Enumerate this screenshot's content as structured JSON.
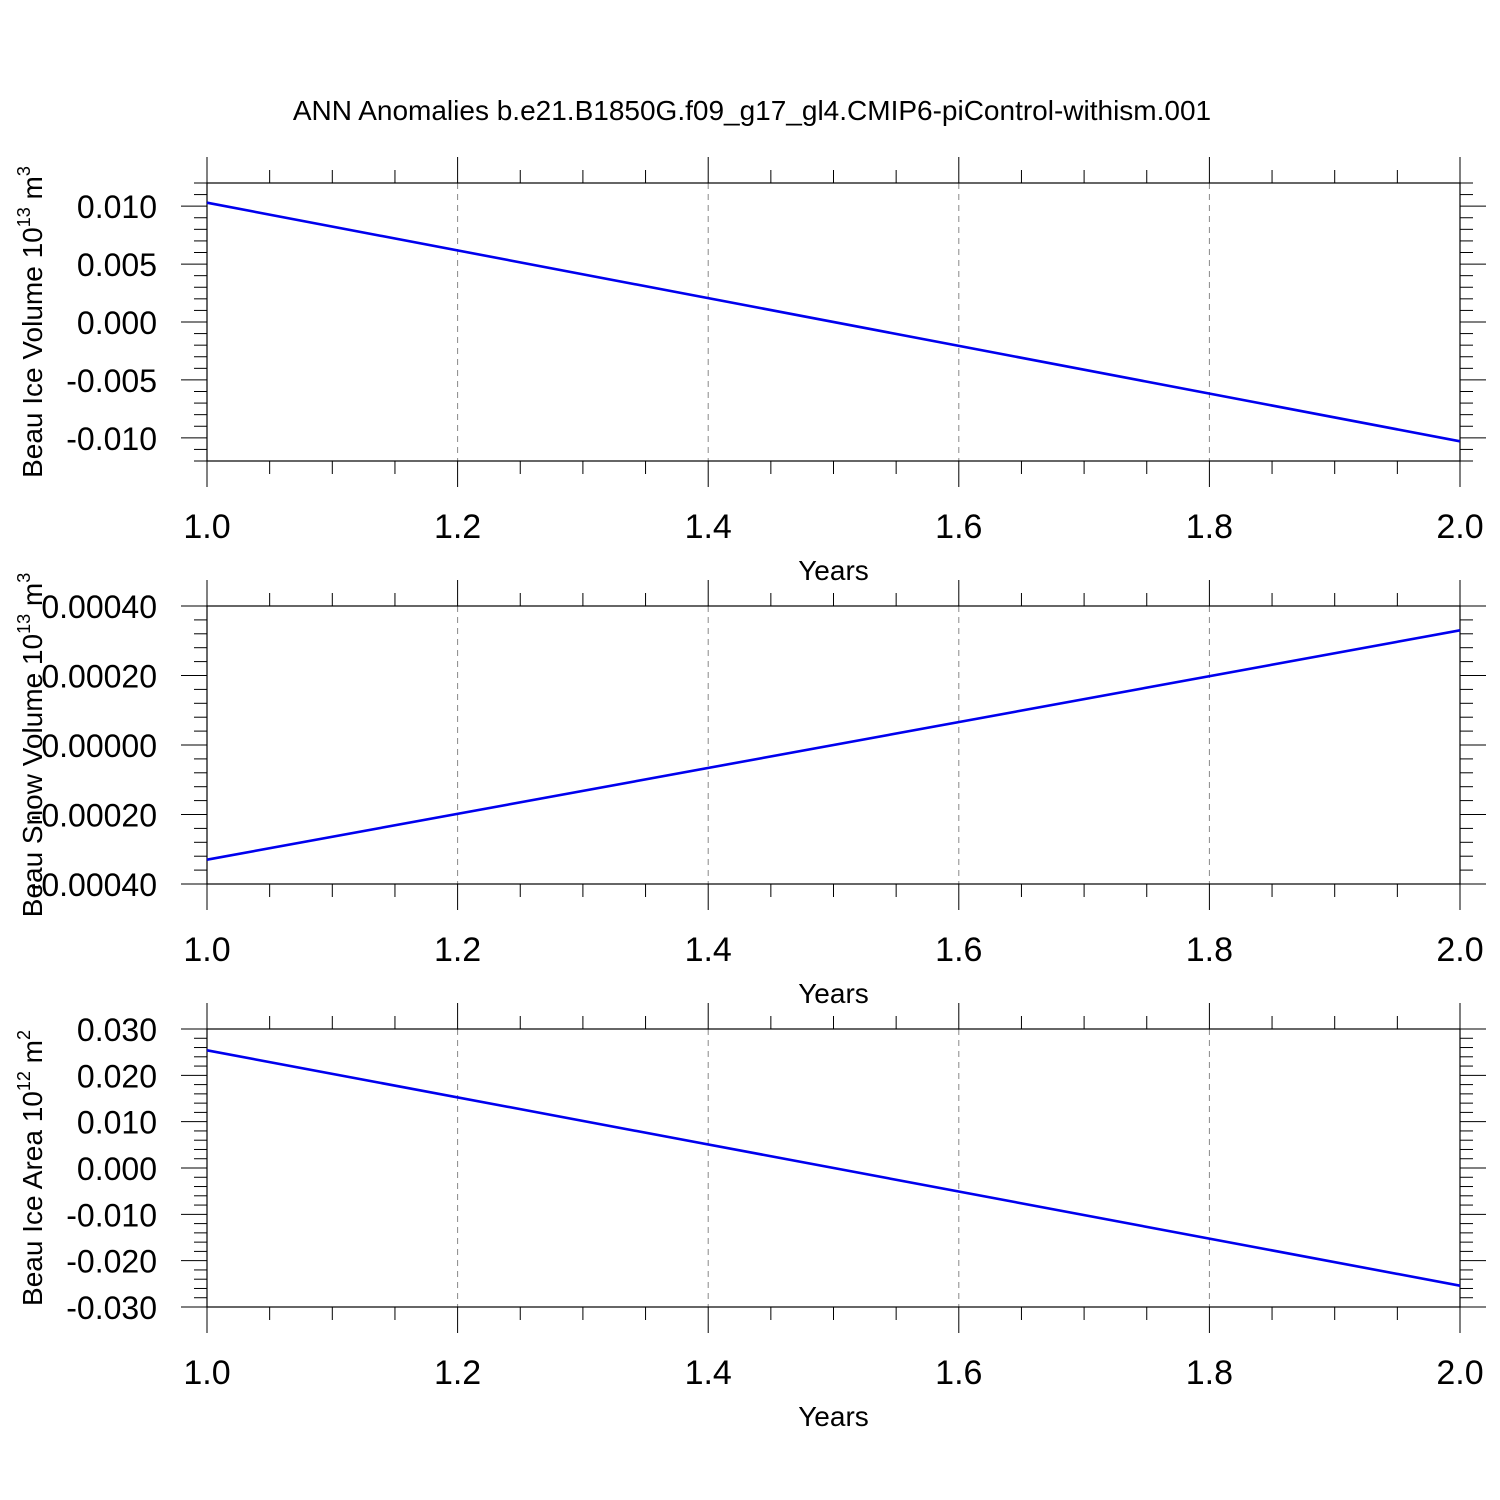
{
  "title": "ANN Anomalies b.e21.B1850G.f09_g17_gl4.CMIP6-piControl-withism.001",
  "colors": {
    "line": "#0000ee",
    "axis": "#000000",
    "grid": "#888888"
  },
  "chart_data": [
    {
      "type": "line",
      "xlabel": "Years",
      "ylabel": "Beau Ice Volume 10",
      "ylabel_sup": "13",
      "ylabel_unit": " m",
      "ylabel_unit_sup": "3",
      "xlim": [
        1.0,
        2.0
      ],
      "ylim": [
        -0.012,
        0.012
      ],
      "xticks": [
        "1.0",
        "1.2",
        "1.4",
        "1.6",
        "1.8",
        "2.0"
      ],
      "yticks": [
        "0.010",
        "0.005",
        "0.000",
        "-0.005",
        "-0.010"
      ],
      "ytick_values": [
        0.01,
        0.005,
        0.0,
        -0.005,
        -0.01
      ],
      "grid": "vertical dashed at major x ticks",
      "series": [
        {
          "x": [
            1.0,
            2.0
          ],
          "y": [
            0.0103,
            -0.0103
          ]
        }
      ]
    },
    {
      "type": "line",
      "xlabel": "Years",
      "ylabel": "Beau Snow Volume 10",
      "ylabel_sup": "13",
      "ylabel_unit": " m",
      "ylabel_unit_sup": "3",
      "xlim": [
        1.0,
        2.0
      ],
      "ylim": [
        -0.0004,
        0.0004
      ],
      "xticks": [
        "1.0",
        "1.2",
        "1.4",
        "1.6",
        "1.8",
        "2.0"
      ],
      "yticks": [
        "0.00040",
        "0.00020",
        "0.00000",
        "-0.00020",
        "-0.00040"
      ],
      "ytick_values": [
        0.0004,
        0.0002,
        0.0,
        -0.0002,
        -0.0004
      ],
      "grid": "vertical dashed at major x ticks",
      "series": [
        {
          "x": [
            1.0,
            2.0
          ],
          "y": [
            -0.00033,
            0.00033
          ]
        }
      ]
    },
    {
      "type": "line",
      "xlabel": "Years",
      "ylabel": "Beau Ice Area 10",
      "ylabel_sup": "12",
      "ylabel_unit": " m",
      "ylabel_unit_sup": "2",
      "xlim": [
        1.0,
        2.0
      ],
      "ylim": [
        -0.03,
        0.03
      ],
      "xticks": [
        "1.0",
        "1.2",
        "1.4",
        "1.6",
        "1.8",
        "2.0"
      ],
      "yticks": [
        "0.030",
        "0.020",
        "0.010",
        "0.000",
        "-0.010",
        "-0.020",
        "-0.030"
      ],
      "ytick_values": [
        0.03,
        0.02,
        0.01,
        0.0,
        -0.01,
        -0.02,
        -0.03
      ],
      "grid": "vertical dashed at major x ticks",
      "series": [
        {
          "x": [
            1.0,
            2.0
          ],
          "y": [
            0.0254,
            -0.0254
          ]
        }
      ]
    }
  ]
}
